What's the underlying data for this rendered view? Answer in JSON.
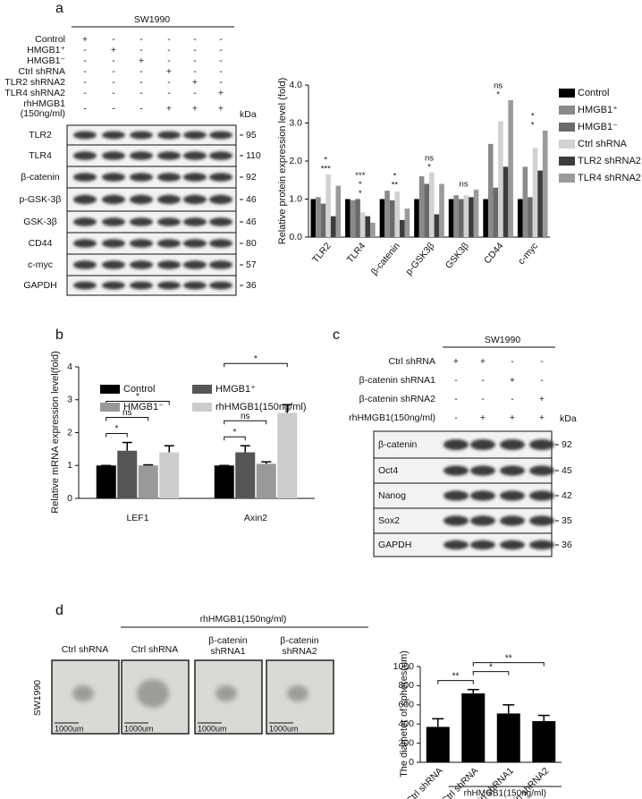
{
  "panel_labels": [
    "a",
    "b",
    "c",
    "d"
  ],
  "blot_a": {
    "cell_line": "SW1990",
    "conditions": [
      {
        "label": [
          "Control"
        ],
        "signs": [
          "+",
          "-",
          "-",
          "-",
          "-",
          "-"
        ]
      },
      {
        "label": [
          "HMGB1⁺"
        ],
        "signs": [
          "-",
          "+",
          "-",
          "-",
          "-",
          "-"
        ]
      },
      {
        "label": [
          "HMGB1⁻"
        ],
        "signs": [
          "-",
          "-",
          "+",
          "-",
          "-",
          "-"
        ]
      },
      {
        "label": [
          "Ctrl shRNA"
        ],
        "signs": [
          "-",
          "-",
          "-",
          "+",
          "-",
          "-"
        ]
      },
      {
        "label": [
          "TLR2 shRNA2"
        ],
        "signs": [
          "-",
          "-",
          "-",
          "-",
          "+",
          "-"
        ]
      },
      {
        "label": [
          "TLR4 shRNA2"
        ],
        "signs": [
          "-",
          "-",
          "-",
          "-",
          "-",
          "+"
        ]
      },
      {
        "label": [
          "rhHMGB1",
          "(150ng/ml)"
        ],
        "signs": [
          "-",
          "-",
          "-",
          "+",
          "+",
          "+"
        ]
      }
    ],
    "kda_label": "kDa",
    "bands": [
      {
        "name": "TLR2",
        "kda": 95
      },
      {
        "name": "TLR4",
        "kda": 110
      },
      {
        "name": "β-catenin",
        "kda": 92
      },
      {
        "name": "p-GSK-3β",
        "kda": 46
      },
      {
        "name": "GSK-3β",
        "kda": 46
      },
      {
        "name": "CD44",
        "kda": 80
      },
      {
        "name": "c-myc",
        "kda": 57
      },
      {
        "name": "GAPDH",
        "kda": 36
      }
    ]
  },
  "blot_c": {
    "cell_line": "SW1990",
    "conditions": [
      {
        "label": [
          "Ctrl shRNA"
        ],
        "signs": [
          "+",
          "+",
          "-",
          "-"
        ]
      },
      {
        "label": [
          "β-catenin shRNA1"
        ],
        "signs": [
          "-",
          "-",
          "+",
          "-"
        ]
      },
      {
        "label": [
          "β-catenin shRNA2"
        ],
        "signs": [
          "-",
          "-",
          "-",
          "+"
        ]
      },
      {
        "label": [
          "rhHMGB1(150ng/ml)"
        ],
        "signs": [
          "-",
          "+",
          "+",
          "+"
        ]
      }
    ],
    "kda_label": "kDa",
    "bands": [
      {
        "name": "β-catenin",
        "kda": 92
      },
      {
        "name": "Oct4",
        "kda": 45
      },
      {
        "name": "Nanog",
        "kda": 42
      },
      {
        "name": "Sox2",
        "kda": 35
      },
      {
        "name": "GAPDH",
        "kda": 36
      }
    ]
  },
  "images_d": {
    "treatment": "rhHMGB1(150ng/ml)",
    "cell_line": "SW1990",
    "columns": [
      [
        "Ctrl shRNA"
      ],
      [
        "Ctrl shRNA"
      ],
      [
        "β-catenin",
        "shRNA1"
      ],
      [
        "β-catenin",
        "shRNA2"
      ]
    ],
    "scale_bar": "1000um"
  },
  "chart_data": [
    {
      "type": "bar",
      "ylabel": "Relative protein expression level (fold)",
      "categories": [
        "TLR2",
        "TLR4",
        "β-catenin",
        "p-GSK3β",
        "GSK3β",
        "CD44",
        "c-myc"
      ],
      "series": [
        {
          "name": "Control",
          "color": "#000000",
          "values": [
            1.0,
            1.0,
            1.0,
            1.0,
            1.0,
            1.0,
            1.0
          ]
        },
        {
          "name": "HMGB1⁺",
          "color": "#8a8a8a",
          "values": [
            1.05,
            0.97,
            1.22,
            1.6,
            1.1,
            2.45,
            1.85
          ]
        },
        {
          "name": "HMGB1⁻",
          "color": "#6a6a6a",
          "values": [
            0.88,
            1.0,
            0.97,
            1.4,
            1.0,
            1.3,
            1.05
          ]
        },
        {
          "name": "Ctrl shRNA",
          "color": "#d2d2d2",
          "values": [
            1.65,
            0.65,
            1.2,
            1.7,
            1.1,
            3.05,
            2.35
          ]
        },
        {
          "name": "TLR2 shRNA2",
          "color": "#3c3c3c",
          "values": [
            0.55,
            0.55,
            0.45,
            0.6,
            1.05,
            1.85,
            1.75
          ]
        },
        {
          "name": "TLR4 shRNA2",
          "color": "#9a9a9a",
          "values": [
            1.35,
            0.38,
            0.75,
            1.4,
            1.25,
            3.6,
            2.8
          ]
        }
      ],
      "annotations": [
        {
          "category": 0,
          "texts": [
            "***",
            "*"
          ]
        },
        {
          "category": 1,
          "texts": [
            "*",
            "*",
            "***"
          ]
        },
        {
          "category": 2,
          "texts": [
            "**",
            "*"
          ]
        },
        {
          "category": 3,
          "texts": [
            "*",
            "ns"
          ]
        },
        {
          "category": 4,
          "texts": [
            "ns"
          ]
        },
        {
          "category": 5,
          "texts": [
            "*",
            "ns"
          ]
        },
        {
          "category": 6,
          "texts": [
            "*",
            "*"
          ]
        }
      ],
      "ylim": [
        0,
        4
      ],
      "yticks": [
        {
          "value": 0,
          "label": "0.0"
        },
        {
          "value": 1,
          "label": "1.0"
        },
        {
          "value": 2,
          "label": "2.0"
        },
        {
          "value": 3,
          "label": "3.0"
        },
        {
          "value": 4,
          "label": "4.0"
        }
      ],
      "legend": "right"
    },
    {
      "type": "bar",
      "ylabel": "Relative mRNA expression level(fold)",
      "categories": [
        "LEF1",
        "Axin2"
      ],
      "series": [
        {
          "name": "Control",
          "color": "#000000",
          "values": [
            1.0,
            1.0
          ],
          "errors": [
            0,
            0
          ]
        },
        {
          "name": "HMGB1⁺",
          "color": "#555555",
          "values": [
            1.45,
            1.4
          ],
          "errors": [
            0.25,
            0.2
          ]
        },
        {
          "name": "HMGB1⁻",
          "color": "#999999",
          "values": [
            1.0,
            1.05
          ],
          "errors": [
            0.02,
            0.06
          ]
        },
        {
          "name": "rhHMGB1(150ng/ml)",
          "color": "#cccccc",
          "values": [
            1.4,
            2.6
          ],
          "errors": [
            0.2,
            0.25
          ]
        }
      ],
      "annotations": [
        {
          "text": "*",
          "category": 0,
          "from": 0,
          "to": 1
        },
        {
          "text": "ns",
          "category": 0,
          "from": 0,
          "to": 2
        },
        {
          "text": "*",
          "category": 0,
          "from": 0,
          "to": 3
        },
        {
          "text": "*",
          "category": 1,
          "from": 0,
          "to": 1
        },
        {
          "text": "ns",
          "category": 1,
          "from": 0,
          "to": 2
        },
        {
          "text": "*",
          "category": 1,
          "from": 0,
          "to": 3
        }
      ],
      "ylim": [
        0,
        4
      ],
      "yticks": [
        0,
        1,
        2,
        3,
        4
      ],
      "legend": "top"
    },
    {
      "type": "bar",
      "ylabel": "The diameter of spheres(um)",
      "categories": [
        "Ctrl shRNA",
        "Ctrl shRNA",
        "β-catenin shRNA1",
        "β-catenin shRNA2"
      ],
      "values": [
        370,
        720,
        510,
        430
      ],
      "errors": [
        85,
        40,
        90,
        60
      ],
      "color": "#000000",
      "group_label": "rhHMGB1(150ng/ml)",
      "annotations": [
        {
          "text": "**",
          "from": 0,
          "to": 1
        },
        {
          "text": "*",
          "from": 1,
          "to": 2
        },
        {
          "text": "**",
          "from": 1,
          "to": 3
        }
      ],
      "ylim": [
        0,
        1000
      ],
      "yticks": [
        0,
        200,
        400,
        600,
        800,
        1000
      ]
    }
  ]
}
